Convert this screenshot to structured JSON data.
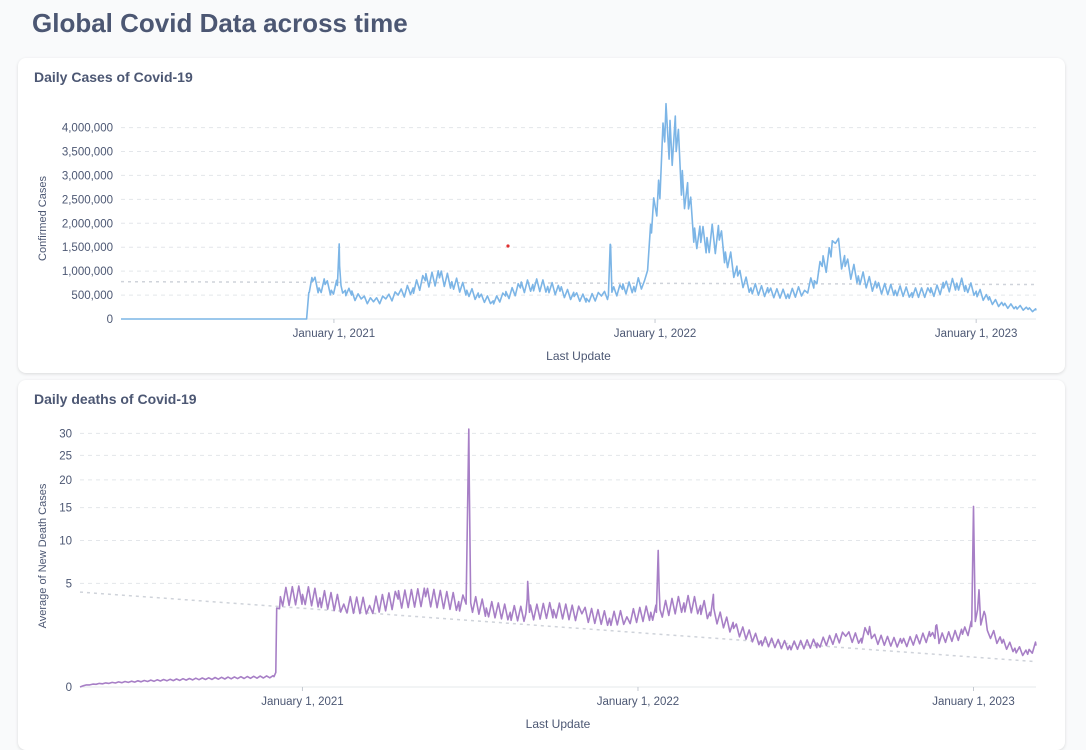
{
  "page": {
    "title": "Global Covid Data across time"
  },
  "colors": {
    "cases": "#7cb5e6",
    "deaths": "#a77fc6",
    "grid": "#e3e6ea",
    "trend": "#cfd3da",
    "marker": "#e03131"
  },
  "chart_data": [
    {
      "type": "line",
      "title": "Daily Cases of Covid-19",
      "xlabel": "Last Update",
      "ylabel": "Confirmed Cases",
      "x_range": [
        "2020-05-04",
        "2023-03-10"
      ],
      "ylim": [
        0,
        4200000
      ],
      "y_ticks": [
        0,
        500000,
        1000000,
        1500000,
        2000000,
        2500000,
        3000000,
        3500000,
        4000000
      ],
      "y_tick_labels": [
        "0",
        "500,000",
        "1,000,000",
        "1,500,000",
        "2,000,000",
        "2,500,000",
        "3,000,000",
        "3,500,000",
        "4,000,000"
      ],
      "x_ticks": [
        "2021-01-01",
        "2022-01-01",
        "2023-01-01"
      ],
      "x_tick_labels": [
        "January 1, 2021",
        "January 1, 2022",
        "January 1, 2023"
      ],
      "grid": true,
      "trendline": [
        [
          "2020-05-04",
          780000
        ],
        [
          "2023-03-10",
          720000
        ]
      ],
      "series": [
        {
          "points": [
            [
              "2020-05-04",
              0
            ],
            [
              "2020-12-01",
              0
            ],
            [
              "2020-12-04",
              560000
            ],
            [
              "2020-12-08",
              790000
            ],
            [
              "2020-12-15",
              650000
            ],
            [
              "2020-12-22",
              720000
            ],
            [
              "2020-12-29",
              600000
            ],
            [
              "2021-01-05",
              700000
            ],
            [
              "2021-01-07",
              1570000
            ],
            [
              "2021-01-09",
              700000
            ],
            [
              "2021-01-14",
              600000
            ],
            [
              "2021-01-21",
              500000
            ],
            [
              "2021-02-01",
              420000
            ],
            [
              "2021-02-15",
              360000
            ],
            [
              "2021-03-01",
              420000
            ],
            [
              "2021-03-15",
              500000
            ],
            [
              "2021-04-01",
              650000
            ],
            [
              "2021-04-15",
              800000
            ],
            [
              "2021-05-01",
              860000
            ],
            [
              "2021-05-15",
              780000
            ],
            [
              "2021-06-01",
              600000
            ],
            [
              "2021-06-15",
              450000
            ],
            [
              "2021-07-01",
              380000
            ],
            [
              "2021-07-15",
              480000
            ],
            [
              "2021-08-01",
              650000
            ],
            [
              "2021-08-15",
              720000
            ],
            [
              "2021-09-01",
              680000
            ],
            [
              "2021-09-15",
              580000
            ],
            [
              "2021-10-01",
              470000
            ],
            [
              "2021-10-15",
              430000
            ],
            [
              "2021-11-01",
              480000
            ],
            [
              "2021-11-09",
              500000
            ],
            [
              "2021-11-11",
              1560000
            ],
            [
              "2021-11-13",
              560000
            ],
            [
              "2021-11-25",
              620000
            ],
            [
              "2021-12-08",
              680000
            ],
            [
              "2021-12-20",
              800000
            ],
            [
              "2021-12-28",
              1800000
            ],
            [
              "2022-01-05",
              2900000
            ],
            [
              "2022-01-12",
              3700000
            ],
            [
              "2022-01-18",
              4150000
            ],
            [
              "2022-01-25",
              3500000
            ],
            [
              "2022-02-01",
              3100000
            ],
            [
              "2022-02-08",
              2300000
            ],
            [
              "2022-02-15",
              1900000
            ],
            [
              "2022-02-22",
              1600000
            ],
            [
              "2022-03-01",
              1700000
            ],
            [
              "2022-03-15",
              1650000
            ],
            [
              "2022-03-22",
              1400000
            ],
            [
              "2022-04-05",
              900000
            ],
            [
              "2022-04-20",
              650000
            ],
            [
              "2022-05-10",
              550000
            ],
            [
              "2022-06-01",
              520000
            ],
            [
              "2022-06-20",
              600000
            ],
            [
              "2022-07-01",
              800000
            ],
            [
              "2022-07-10",
              1100000
            ],
            [
              "2022-07-20",
              1300000
            ],
            [
              "2022-07-25",
              1580000
            ],
            [
              "2022-08-05",
              1100000
            ],
            [
              "2022-08-20",
              900000
            ],
            [
              "2022-09-10",
              650000
            ],
            [
              "2022-10-01",
              600000
            ],
            [
              "2022-10-20",
              550000
            ],
            [
              "2022-11-10",
              550000
            ],
            [
              "2022-11-25",
              650000
            ],
            [
              "2022-12-10",
              750000
            ],
            [
              "2022-12-20",
              700000
            ],
            [
              "2023-01-01",
              580000
            ],
            [
              "2023-01-15",
              400000
            ],
            [
              "2023-02-01",
              280000
            ],
            [
              "2023-02-15",
              260000
            ],
            [
              "2023-03-01",
              200000
            ],
            [
              "2023-03-10",
              180000
            ]
          ]
        }
      ]
    },
    {
      "type": "line",
      "title": "Daily deaths of Covid-19",
      "xlabel": "Last Update",
      "ylabel": "Average of New Death Cases",
      "x_range": [
        "2020-05-04",
        "2023-03-10"
      ],
      "y_scale": "pow0.5",
      "ylim": [
        0,
        32
      ],
      "y_ticks": [
        0,
        5,
        10,
        15,
        20,
        25,
        30
      ],
      "y_tick_labels": [
        "0",
        "5",
        "10",
        "15",
        "20",
        "25",
        "30"
      ],
      "x_ticks": [
        "2021-01-01",
        "2022-01-01",
        "2023-01-01"
      ],
      "x_tick_labels": [
        "January 1, 2021",
        "January 1, 2022",
        "January 1, 2023"
      ],
      "grid": true,
      "trendline": [
        [
          "2020-05-04",
          4.2
        ],
        [
          "2023-03-10",
          0.3
        ]
      ],
      "series": [
        {
          "points": [
            [
              "2020-05-04",
              0
            ],
            [
              "2020-12-01",
              0.05
            ],
            [
              "2020-12-03",
              0.1
            ],
            [
              "2020-12-04",
              2.9
            ],
            [
              "2020-12-08",
              3.8
            ],
            [
              "2021-01-01",
              4.0
            ],
            [
              "2021-01-20",
              3.7
            ],
            [
              "2021-02-15",
              3.2
            ],
            [
              "2021-03-15",
              3.1
            ],
            [
              "2021-04-15",
              3.6
            ],
            [
              "2021-05-15",
              3.8
            ],
            [
              "2021-06-20",
              3.4
            ],
            [
              "2021-06-28",
              3.2
            ],
            [
              "2021-07-01",
              31
            ],
            [
              "2021-07-03",
              3.3
            ],
            [
              "2021-07-20",
              2.9
            ],
            [
              "2021-08-15",
              2.6
            ],
            [
              "2021-09-01",
              2.5
            ],
            [
              "2021-09-03",
              5.2
            ],
            [
              "2021-09-05",
              2.6
            ],
            [
              "2021-10-01",
              2.8
            ],
            [
              "2021-11-01",
              2.5
            ],
            [
              "2021-12-01",
              2.2
            ],
            [
              "2021-12-20",
              2.3
            ],
            [
              "2022-01-15",
              2.6
            ],
            [
              "2022-01-21",
              2.6
            ],
            [
              "2022-01-23",
              8.7
            ],
            [
              "2022-01-25",
              2.8
            ],
            [
              "2022-02-20",
              3.3
            ],
            [
              "2022-03-10",
              3.1
            ],
            [
              "2022-03-20",
              2.6
            ],
            [
              "2022-03-24",
              4.0
            ],
            [
              "2022-03-26",
              2.4
            ],
            [
              "2022-04-15",
              1.6
            ],
            [
              "2022-05-15",
              1.0
            ],
            [
              "2022-06-15",
              0.8
            ],
            [
              "2022-07-15",
              0.9
            ],
            [
              "2022-08-15",
              1.2
            ],
            [
              "2022-09-01",
              1.1
            ],
            [
              "2022-09-10",
              1.7
            ],
            [
              "2022-09-12",
              1.1
            ],
            [
              "2022-10-15",
              0.9
            ],
            [
              "2022-11-15",
              1.2
            ],
            [
              "2022-11-20",
              1.1
            ],
            [
              "2022-11-22",
              1.8
            ],
            [
              "2022-11-24",
              1.1
            ],
            [
              "2022-12-20",
              1.3
            ],
            [
              "2022-12-30",
              1.7
            ],
            [
              "2023-01-01",
              15.2
            ],
            [
              "2023-01-03",
              2.0
            ],
            [
              "2023-01-07",
              4.4
            ],
            [
              "2023-01-09",
              1.8
            ],
            [
              "2023-01-14",
              2.4
            ],
            [
              "2023-01-16",
              1.5
            ],
            [
              "2023-02-01",
              0.9
            ],
            [
              "2023-02-15",
              0.7
            ],
            [
              "2023-03-01",
              0.5
            ],
            [
              "2023-03-10",
              0.8
            ]
          ]
        }
      ]
    }
  ]
}
